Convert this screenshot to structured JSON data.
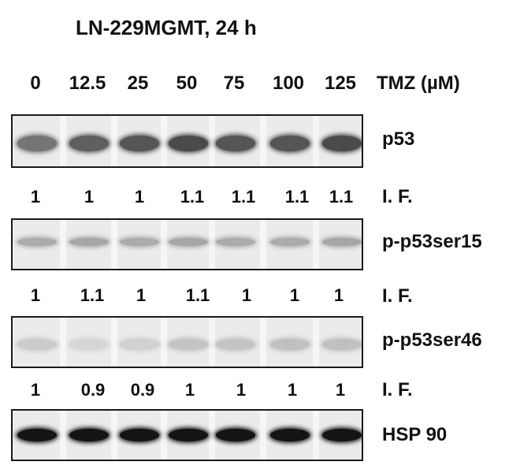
{
  "title": "LN-229MGMT, 24 h",
  "treatment_label": "TMZ (µM)",
  "lanes": [
    "0",
    "12.5",
    "25",
    "50",
    "75",
    "100",
    "125"
  ],
  "if_label": "I. F.",
  "blots": [
    {
      "label": "p53",
      "intensity": [
        0.55,
        0.65,
        0.7,
        0.75,
        0.7,
        0.7,
        0.75
      ]
    },
    {
      "label": "p-p53ser15",
      "intensity": [
        0.3,
        0.32,
        0.3,
        0.32,
        0.3,
        0.3,
        0.32
      ]
    },
    {
      "label": "p-p53ser46",
      "intensity": [
        0.15,
        0.1,
        0.12,
        0.18,
        0.18,
        0.2,
        0.2
      ]
    },
    {
      "label": "HSP 90",
      "intensity": [
        1,
        1,
        1,
        1,
        1,
        1,
        1
      ]
    }
  ],
  "if_rows": [
    [
      "1",
      "1",
      "1",
      "1.1",
      "1.1",
      "1.1",
      "1.1"
    ],
    [
      "1",
      "1.1",
      "1",
      "1.1",
      "1",
      "1",
      "1"
    ],
    [
      "1",
      "0.9",
      "0.9",
      "1",
      "1",
      "1",
      "1"
    ]
  ]
}
